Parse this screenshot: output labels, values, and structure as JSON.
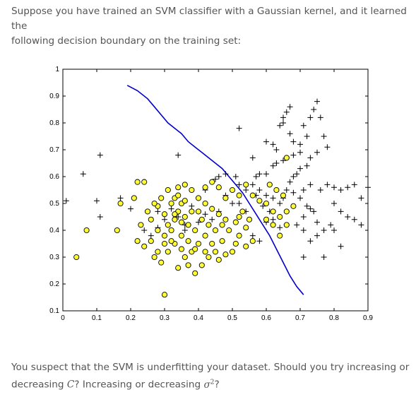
{
  "question": {
    "intro_line1": "Suppose you have trained an SVM classifier with a Gaussian kernel, and it learned the",
    "intro_line2": "following decision boundary on the training set:",
    "followup_line1": "You suspect that the SVM is underfitting your dataset. Should you try increasing or",
    "followup_line2_a": "decreasing",
    "followup_symbol_c": "C",
    "followup_line2_b": "? Increasing or decreasing",
    "followup_symbol_sigma": "σ",
    "followup_symbol_exp": "2",
    "followup_line2_c": "?"
  },
  "chart_data": {
    "type": "scatter",
    "title": "",
    "xlabel": "",
    "ylabel": "",
    "xlim": [
      0,
      0.9
    ],
    "ylim": [
      0.1,
      1
    ],
    "x_ticks": [
      "0",
      "0.1",
      "0.2",
      "0.3",
      "0.4",
      "0.5",
      "0.6",
      "0.7",
      "0.8",
      "0.9"
    ],
    "y_ticks": [
      "0.1",
      "0.2",
      "0.3",
      "0.4",
      "0.5",
      "0.6",
      "0.7",
      "0.8",
      "0.9",
      "1"
    ],
    "grid": false,
    "colors": {
      "positive_marker": "#000000",
      "negative_fill": "#ffff33",
      "negative_edge": "#000000",
      "boundary": "#0000cc"
    },
    "series": [
      {
        "marker": "plus",
        "points": [
          [
            0.06,
            0.61
          ],
          [
            0.11,
            0.68
          ],
          [
            0.11,
            0.45
          ],
          [
            0.1,
            0.51
          ],
          [
            0.17,
            0.52
          ],
          [
            0.01,
            0.51
          ],
          [
            0.2,
            0.48
          ],
          [
            0.28,
            0.47
          ],
          [
            0.34,
            0.68
          ],
          [
            0.45,
            0.59
          ],
          [
            0.46,
            0.6
          ],
          [
            0.48,
            0.61
          ],
          [
            0.51,
            0.6
          ],
          [
            0.52,
            0.78
          ],
          [
            0.56,
            0.67
          ],
          [
            0.57,
            0.6
          ],
          [
            0.58,
            0.61
          ],
          [
            0.6,
            0.61
          ],
          [
            0.62,
            0.64
          ],
          [
            0.63,
            0.65
          ],
          [
            0.65,
            0.66
          ],
          [
            0.66,
            0.67
          ],
          [
            0.68,
            0.68
          ],
          [
            0.7,
            0.69
          ],
          [
            0.64,
            0.79
          ],
          [
            0.65,
            0.82
          ],
          [
            0.66,
            0.84
          ],
          [
            0.67,
            0.86
          ],
          [
            0.65,
            0.8
          ],
          [
            0.67,
            0.76
          ],
          [
            0.68,
            0.73
          ],
          [
            0.7,
            0.72
          ],
          [
            0.71,
            0.79
          ],
          [
            0.72,
            0.75
          ],
          [
            0.73,
            0.82
          ],
          [
            0.74,
            0.85
          ],
          [
            0.75,
            0.88
          ],
          [
            0.76,
            0.82
          ],
          [
            0.77,
            0.75
          ],
          [
            0.78,
            0.71
          ],
          [
            0.75,
            0.69
          ],
          [
            0.73,
            0.67
          ],
          [
            0.72,
            0.64
          ],
          [
            0.7,
            0.63
          ],
          [
            0.69,
            0.61
          ],
          [
            0.68,
            0.6
          ],
          [
            0.67,
            0.58
          ],
          [
            0.66,
            0.55
          ],
          [
            0.65,
            0.52
          ],
          [
            0.64,
            0.5
          ],
          [
            0.62,
            0.52
          ],
          [
            0.6,
            0.53
          ],
          [
            0.58,
            0.55
          ],
          [
            0.56,
            0.57
          ],
          [
            0.68,
            0.54
          ],
          [
            0.7,
            0.52
          ],
          [
            0.72,
            0.49
          ],
          [
            0.74,
            0.47
          ],
          [
            0.76,
            0.55
          ],
          [
            0.78,
            0.57
          ],
          [
            0.8,
            0.56
          ],
          [
            0.82,
            0.55
          ],
          [
            0.84,
            0.56
          ],
          [
            0.86,
            0.57
          ],
          [
            0.88,
            0.52
          ],
          [
            0.9,
            0.56
          ],
          [
            0.8,
            0.5
          ],
          [
            0.82,
            0.47
          ],
          [
            0.84,
            0.45
          ],
          [
            0.86,
            0.44
          ],
          [
            0.88,
            0.42
          ],
          [
            0.79,
            0.42
          ],
          [
            0.77,
            0.4
          ],
          [
            0.75,
            0.38
          ],
          [
            0.73,
            0.36
          ],
          [
            0.71,
            0.4
          ],
          [
            0.69,
            0.42
          ],
          [
            0.71,
            0.45
          ],
          [
            0.73,
            0.48
          ],
          [
            0.75,
            0.43
          ],
          [
            0.71,
            0.3
          ],
          [
            0.77,
            0.3
          ],
          [
            0.8,
            0.4
          ],
          [
            0.82,
            0.34
          ],
          [
            0.58,
            0.36
          ],
          [
            0.6,
            0.43
          ],
          [
            0.62,
            0.44
          ],
          [
            0.64,
            0.41
          ],
          [
            0.56,
            0.38
          ],
          [
            0.54,
            0.47
          ],
          [
            0.52,
            0.5
          ],
          [
            0.5,
            0.5
          ],
          [
            0.48,
            0.53
          ],
          [
            0.46,
            0.47
          ],
          [
            0.44,
            0.44
          ],
          [
            0.42,
            0.46
          ],
          [
            0.4,
            0.43
          ],
          [
            0.38,
            0.49
          ],
          [
            0.36,
            0.42
          ],
          [
            0.34,
            0.45
          ],
          [
            0.32,
            0.48
          ],
          [
            0.3,
            0.44
          ],
          [
            0.28,
            0.41
          ],
          [
            0.26,
            0.38
          ],
          [
            0.24,
            0.4
          ],
          [
            0.36,
            0.4
          ],
          [
            0.4,
            0.52
          ],
          [
            0.42,
            0.55
          ],
          [
            0.63,
            0.7
          ],
          [
            0.62,
            0.72
          ],
          [
            0.6,
            0.73
          ],
          [
            0.61,
            0.47
          ],
          [
            0.59,
            0.49
          ],
          [
            0.57,
            0.53
          ],
          [
            0.54,
            0.55
          ],
          [
            0.52,
            0.57
          ],
          [
            0.71,
            0.55
          ],
          [
            0.73,
            0.57
          ]
        ]
      },
      {
        "marker": "circle",
        "points": [
          [
            0.04,
            0.3
          ],
          [
            0.07,
            0.4
          ],
          [
            0.16,
            0.4
          ],
          [
            0.17,
            0.5
          ],
          [
            0.21,
            0.52
          ],
          [
            0.22,
            0.58
          ],
          [
            0.24,
            0.58
          ],
          [
            0.23,
            0.42
          ],
          [
            0.26,
            0.44
          ],
          [
            0.26,
            0.36
          ],
          [
            0.24,
            0.34
          ],
          [
            0.22,
            0.36
          ],
          [
            0.27,
            0.3
          ],
          [
            0.28,
            0.32
          ],
          [
            0.3,
            0.35
          ],
          [
            0.32,
            0.4
          ],
          [
            0.33,
            0.44
          ],
          [
            0.3,
            0.46
          ],
          [
            0.28,
            0.49
          ],
          [
            0.29,
            0.52
          ],
          [
            0.31,
            0.55
          ],
          [
            0.33,
            0.52
          ],
          [
            0.35,
            0.5
          ],
          [
            0.34,
            0.47
          ],
          [
            0.36,
            0.45
          ],
          [
            0.37,
            0.42
          ],
          [
            0.35,
            0.38
          ],
          [
            0.33,
            0.35
          ],
          [
            0.31,
            0.32
          ],
          [
            0.29,
            0.28
          ],
          [
            0.3,
            0.16
          ],
          [
            0.34,
            0.26
          ],
          [
            0.36,
            0.3
          ],
          [
            0.38,
            0.32
          ],
          [
            0.4,
            0.35
          ],
          [
            0.42,
            0.38
          ],
          [
            0.44,
            0.35
          ],
          [
            0.45,
            0.32
          ],
          [
            0.43,
            0.3
          ],
          [
            0.41,
            0.27
          ],
          [
            0.39,
            0.33
          ],
          [
            0.37,
            0.27
          ],
          [
            0.39,
            0.24
          ],
          [
            0.46,
            0.29
          ],
          [
            0.48,
            0.31
          ],
          [
            0.5,
            0.32
          ],
          [
            0.47,
            0.36
          ],
          [
            0.49,
            0.4
          ],
          [
            0.51,
            0.43
          ],
          [
            0.52,
            0.45
          ],
          [
            0.53,
            0.47
          ],
          [
            0.55,
            0.44
          ],
          [
            0.54,
            0.41
          ],
          [
            0.52,
            0.38
          ],
          [
            0.51,
            0.35
          ],
          [
            0.48,
            0.44
          ],
          [
            0.46,
            0.46
          ],
          [
            0.44,
            0.48
          ],
          [
            0.42,
            0.5
          ],
          [
            0.4,
            0.52
          ],
          [
            0.38,
            0.55
          ],
          [
            0.36,
            0.57
          ],
          [
            0.34,
            0.56
          ],
          [
            0.42,
            0.56
          ],
          [
            0.44,
            0.58
          ],
          [
            0.46,
            0.56
          ],
          [
            0.48,
            0.52
          ],
          [
            0.5,
            0.55
          ],
          [
            0.52,
            0.53
          ],
          [
            0.54,
            0.57
          ],
          [
            0.56,
            0.53
          ],
          [
            0.58,
            0.51
          ],
          [
            0.6,
            0.5
          ],
          [
            0.62,
            0.47
          ],
          [
            0.64,
            0.45
          ],
          [
            0.66,
            0.47
          ],
          [
            0.68,
            0.49
          ],
          [
            0.63,
            0.55
          ],
          [
            0.61,
            0.57
          ],
          [
            0.65,
            0.53
          ],
          [
            0.6,
            0.44
          ],
          [
            0.62,
            0.42
          ],
          [
            0.64,
            0.38
          ],
          [
            0.66,
            0.42
          ],
          [
            0.56,
            0.36
          ],
          [
            0.54,
            0.34
          ],
          [
            0.66,
            0.67
          ],
          [
            0.28,
            0.4
          ],
          [
            0.3,
            0.38
          ],
          [
            0.32,
            0.36
          ],
          [
            0.25,
            0.47
          ],
          [
            0.27,
            0.5
          ],
          [
            0.35,
            0.33
          ],
          [
            0.37,
            0.36
          ],
          [
            0.39,
            0.4
          ],
          [
            0.41,
            0.44
          ],
          [
            0.43,
            0.42
          ],
          [
            0.45,
            0.4
          ],
          [
            0.47,
            0.42
          ],
          [
            0.32,
            0.5
          ],
          [
            0.34,
            0.53
          ],
          [
            0.36,
            0.51
          ],
          [
            0.38,
            0.47
          ],
          [
            0.4,
            0.47
          ],
          [
            0.42,
            0.32
          ],
          [
            0.31,
            0.42
          ],
          [
            0.33,
            0.46
          ],
          [
            0.35,
            0.43
          ]
        ]
      }
    ],
    "decision_boundary": [
      [
        0.19,
        0.94
      ],
      [
        0.22,
        0.92
      ],
      [
        0.25,
        0.89
      ],
      [
        0.27,
        0.86
      ],
      [
        0.29,
        0.83
      ],
      [
        0.31,
        0.8
      ],
      [
        0.33,
        0.78
      ],
      [
        0.35,
        0.76
      ],
      [
        0.37,
        0.73
      ],
      [
        0.39,
        0.71
      ],
      [
        0.41,
        0.69
      ],
      [
        0.43,
        0.67
      ],
      [
        0.45,
        0.65
      ],
      [
        0.47,
        0.63
      ],
      [
        0.49,
        0.6
      ],
      [
        0.51,
        0.57
      ],
      [
        0.53,
        0.54
      ],
      [
        0.55,
        0.5
      ],
      [
        0.57,
        0.46
      ],
      [
        0.59,
        0.42
      ],
      [
        0.61,
        0.38
      ],
      [
        0.63,
        0.33
      ],
      [
        0.65,
        0.28
      ],
      [
        0.67,
        0.23
      ],
      [
        0.69,
        0.19
      ],
      [
        0.71,
        0.16
      ]
    ]
  }
}
